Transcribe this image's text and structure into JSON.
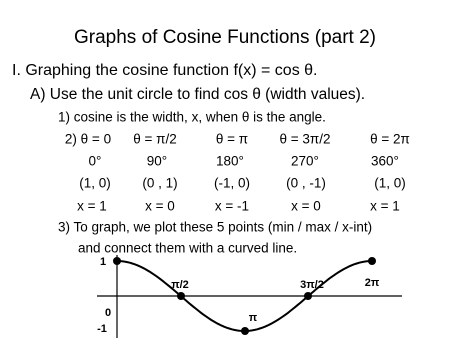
{
  "title": "Graphs of Cosine Functions (part 2)",
  "heading": "I.  Graphing the cosine function  f(x) = cos θ.",
  "subheading": "A) Use the unit circle to find cos θ  (width values).",
  "step1": "1) cosine is the width, x, when θ is the angle.",
  "table": {
    "rows": [
      [
        "2) θ = 0",
        "θ = π/2",
        "θ = π",
        "θ = 3π/2",
        "θ = 2π"
      ],
      [
        "0°",
        "90°",
        "180°",
        "270°",
        "360°"
      ],
      [
        "(1, 0)",
        "(0 , 1)",
        "(-1, 0)",
        "(0 , -1)",
        "(1, 0)"
      ],
      [
        "x = 1",
        "x = 0",
        "x = -1",
        "x = 0",
        "x = 1"
      ]
    ]
  },
  "step3": [
    "3) To graph, we plot these 5 points (min / max / x-int)",
    "and connect them with a curved line."
  ],
  "graph": {
    "y_labels": [
      "1",
      "0",
      "-1"
    ],
    "x_labels": [
      "π/2",
      "π",
      "3π/2",
      "2π"
    ]
  }
}
